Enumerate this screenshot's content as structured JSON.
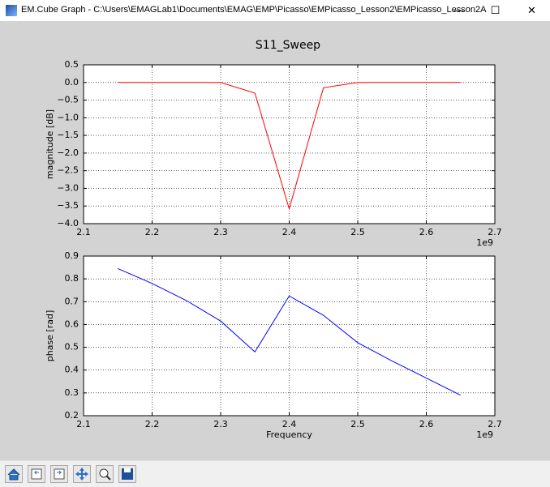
{
  "window_title": "EM.Cube Graph - C:\\Users\\EMAGLab1\\Documents\\EMAG\\EMP\\Picasso\\EMPicasso_Lesson2\\EMPicasso_Lesson2A",
  "figure_title": "S11_Sweep",
  "chart_data": [
    {
      "type": "line",
      "ylabel": "magnitude [dB]",
      "x_offset_label": "1e9",
      "color": "#ff0000",
      "grid": true,
      "x": [
        2.15,
        2.2,
        2.25,
        2.3,
        2.35,
        2.4,
        2.45,
        2.5,
        2.55,
        2.6,
        2.65
      ],
      "values": [
        0.0,
        0.0,
        0.0,
        0.0,
        -0.3,
        -3.58,
        -0.15,
        0.0,
        0.0,
        0.0,
        0.0
      ],
      "xlim": [
        2.1,
        2.7
      ],
      "xticks": [
        2.1,
        2.2,
        2.3,
        2.4,
        2.5,
        2.6,
        2.7
      ],
      "ylim": [
        -4.0,
        0.5
      ],
      "yticks": [
        {
          "value": -4.0,
          "label": "−4.0"
        },
        {
          "value": -3.5,
          "label": "−3.5"
        },
        {
          "value": -3.0,
          "label": "−3.0"
        },
        {
          "value": -2.5,
          "label": "−2.5"
        },
        {
          "value": -2.0,
          "label": "−2.0"
        },
        {
          "value": -1.5,
          "label": "−1.5"
        },
        {
          "value": -1.0,
          "label": "−1.0"
        },
        {
          "value": -0.5,
          "label": "−0.5"
        },
        {
          "value": 0,
          "label": "0.0"
        },
        0.5
      ]
    },
    {
      "type": "line",
      "ylabel": "phase [rad]",
      "xlabel": "Frequency",
      "x_offset_label": "1e9",
      "color": "#0000ff",
      "grid": true,
      "x": [
        2.15,
        2.2,
        2.25,
        2.3,
        2.35,
        2.4,
        2.45,
        2.5,
        2.55,
        2.6,
        2.65
      ],
      "values": [
        0.845,
        0.78,
        0.705,
        0.615,
        0.48,
        0.725,
        0.64,
        0.52,
        0.44,
        0.365,
        0.29
      ],
      "xlim": [
        2.1,
        2.7
      ],
      "xticks": [
        2.1,
        2.2,
        2.3,
        2.4,
        2.5,
        2.6,
        2.7
      ],
      "ylim": [
        0.2,
        0.9
      ],
      "yticks": [
        0.2,
        0.3,
        0.4,
        0.5,
        0.6,
        0.7,
        0.8,
        0.9
      ]
    }
  ]
}
